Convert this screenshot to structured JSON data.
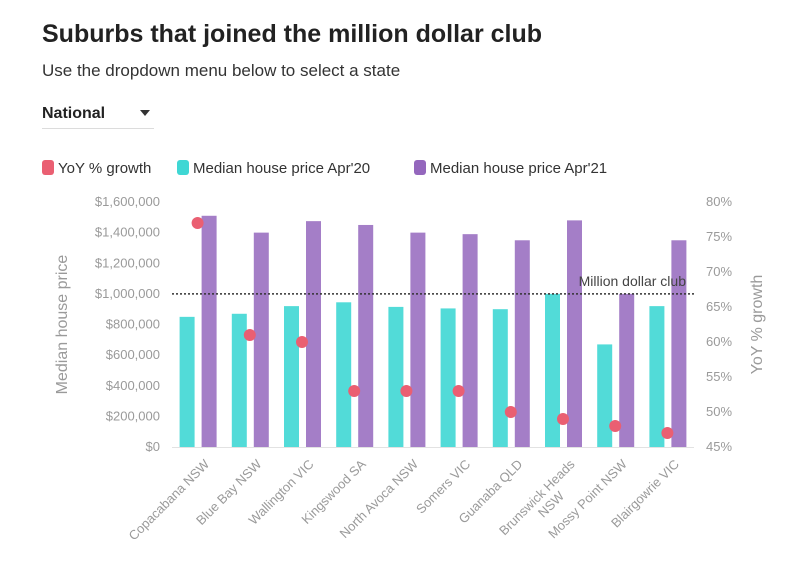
{
  "title": "Suburbs that joined the million dollar club",
  "subtitle": "Use the dropdown menu below to select a state",
  "dropdown": {
    "selected": "National"
  },
  "colors": {
    "yoy": "#ea5f72",
    "apr20": "#3fd7d4",
    "apr21": "#9467bd",
    "reference_line": "#333333"
  },
  "chart_data": {
    "type": "bar",
    "categories": [
      "Copacabana NSW",
      "Blue Bay NSW",
      "Wallington VIC",
      "Kingswood SA",
      "North Avoca NSW",
      "Somers VIC",
      "Guanaba QLD",
      "Brunswick Heads NSW",
      "Mossy Point NSW",
      "Blairgowrie VIC"
    ],
    "series": [
      {
        "name": "Median house price Apr'20",
        "type": "bar",
        "axis": "left",
        "color": "#3fd7d4",
        "values": [
          850000,
          870000,
          920000,
          945000,
          915000,
          905000,
          900000,
          1000000,
          670000,
          920000
        ]
      },
      {
        "name": "Median house price Apr'21",
        "type": "bar",
        "axis": "left",
        "color": "#9467bd",
        "values": [
          1510000,
          1400000,
          1475000,
          1450000,
          1400000,
          1390000,
          1350000,
          1480000,
          1000000,
          1350000
        ]
      },
      {
        "name": "YoY % growth",
        "type": "scatter",
        "axis": "right",
        "color": "#ea5f72",
        "values": [
          77,
          61,
          60,
          53,
          53,
          53,
          50,
          49,
          48,
          47
        ]
      }
    ],
    "ylabel": "Median house price",
    "y2label": "YoY % growth",
    "ylim": [
      0,
      1600000
    ],
    "y2lim": [
      45,
      80
    ],
    "yticks": [
      "$0",
      "$200,000",
      "$400,000",
      "$600,000",
      "$800,000",
      "$1,000,000",
      "$1,200,000",
      "$1,400,000",
      "$1,600,000"
    ],
    "y2ticks": [
      "45%",
      "50%",
      "55%",
      "60%",
      "65%",
      "70%",
      "75%",
      "80%"
    ],
    "reference_line": {
      "value": 1000000,
      "label": "Million dollar club"
    },
    "legend": [
      "YoY % growth",
      "Median house price Apr'20",
      "Median house price Apr'21"
    ],
    "legend_position": "top",
    "grid": false
  }
}
